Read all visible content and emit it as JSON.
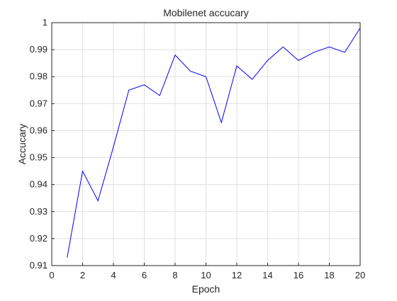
{
  "chart_data": {
    "type": "line",
    "title": "Mobilenet accucary",
    "xlabel": "Epoch",
    "ylabel": "Accucary",
    "xlim": [
      0,
      20
    ],
    "ylim": [
      0.91,
      1.0
    ],
    "xticks": [
      "0",
      "2",
      "4",
      "6",
      "8",
      "10",
      "12",
      "14",
      "16",
      "18",
      "20"
    ],
    "yticks": [
      "0.91",
      "0.92",
      "0.93",
      "0.94",
      "0.95",
      "0.96",
      "0.97",
      "0.98",
      "0.99",
      "1"
    ],
    "grid": true,
    "legend": "none",
    "line_color": "#0000ff",
    "series": [
      {
        "x": [
          1,
          2,
          3,
          4,
          5,
          6,
          7,
          8,
          9,
          10,
          11,
          12,
          13,
          14,
          15,
          16,
          17,
          18,
          19,
          20
        ],
        "values": [
          0.913,
          0.945,
          0.934,
          0.954,
          0.975,
          0.977,
          0.973,
          0.988,
          0.982,
          0.98,
          0.963,
          0.984,
          0.979,
          0.986,
          0.991,
          0.986,
          0.989,
          0.991,
          0.989,
          0.998
        ]
      }
    ]
  }
}
